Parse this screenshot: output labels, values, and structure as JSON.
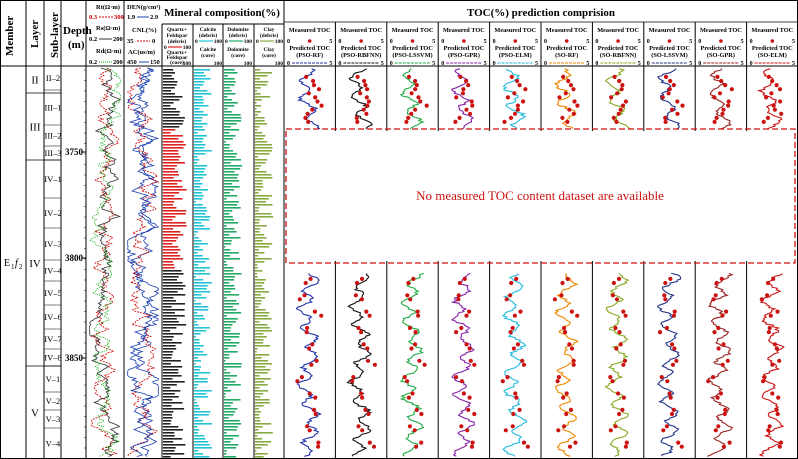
{
  "header": {
    "member": "Member",
    "layer": "Layer",
    "sublayer": "Sub-layer",
    "depth": "Depth",
    "depth_unit": "(m)",
    "mineral_title": "Mineral composition(%)",
    "toc_title": "TOC(%) prediction comprision"
  },
  "member_label": "E",
  "member_sub1": "1",
  "member_f": "f",
  "member_sub2": "2",
  "layers": [
    "II",
    "III",
    "IV",
    "V"
  ],
  "sublayers": [
    "II–2",
    "III–1",
    "III–2",
    "III–3",
    "IV–1",
    "IV–2",
    "IV–3",
    "IV–4",
    "IV–5",
    "IV–6",
    "IV–7",
    "IV–8",
    "V–1",
    "V–2",
    "V–3",
    "V–4"
  ],
  "depth_ticks": [
    "3750",
    "3800",
    "3850"
  ],
  "log_tracks": {
    "rt": {
      "label": "Rt(Ω·m)",
      "min": "0.3",
      "max": "300",
      "color": "#cc0000"
    },
    "rs": {
      "label": "Rs(Ω·m)",
      "min": "0.2",
      "max": "200",
      "color": "#333333"
    },
    "rd": {
      "label": "Rd(Ω·m)",
      "min": "0.2",
      "max": "200",
      "color": "#00aa00"
    },
    "den": {
      "label": "DEN(g/cm³)",
      "min": "1.9",
      "max": "2.9",
      "color": "#1a3fb0"
    },
    "cnl": {
      "label": "CNL(%)",
      "min": "35",
      "max": "0",
      "color": "#cc0000"
    },
    "ac": {
      "label": "AC(us/m)",
      "min": "450",
      "max": "150",
      "color": "#1a3fb0"
    }
  },
  "minerals": [
    {
      "label1": "Quartz+",
      "label2": "Feldspar",
      "label3": "(debris)",
      "core1": "Quartz+",
      "core2": "Feldspar",
      "core3": "(core)",
      "min": "0",
      "max": "100",
      "color": "#dd2222"
    },
    {
      "label1": "Calcite",
      "label2": "(debris)",
      "label3": "",
      "core1": "Calcite",
      "core2": "(core)",
      "core3": "",
      "min": "0",
      "max": "100",
      "color": "#22c4d4"
    },
    {
      "label1": "Dolomite",
      "label2": "(debris)",
      "label3": "",
      "core1": "Dolomite",
      "core2": "(core)",
      "core3": "",
      "min": "0",
      "max": "100",
      "color": "#22aa66"
    },
    {
      "label1": "Clay",
      "label2": "(debris)",
      "label3": "",
      "core1": "Clay",
      "core2": "(core)",
      "core3": "",
      "min": "0",
      "max": "100",
      "color": "#88aa44"
    }
  ],
  "toc_panels": [
    {
      "measured": "Measured TOC",
      "predicted": "Predicted TOC",
      "model": "(PSO-RF)",
      "color": "#2233aa"
    },
    {
      "measured": "Measured TOC",
      "predicted": "Predicted TOC",
      "model": "(PSO-RBFNN)",
      "color": "#111111"
    },
    {
      "measured": "Measured TOC",
      "predicted": "Predicted TOC",
      "model": "(PSO-LSSVM)",
      "color": "#22aa44"
    },
    {
      "measured": "Measured TOC",
      "predicted": "Predicted TOC",
      "model": "(PSO-GPR)",
      "color": "#8822aa"
    },
    {
      "measured": "Measured TOC",
      "predicted": "Predicted TOC",
      "model": "(PSO-ELM)",
      "color": "#22bbdd"
    },
    {
      "measured": "Measured TOC",
      "predicted": "Predicted TOC",
      "model": "(SO-RF)",
      "color": "#ee8800"
    },
    {
      "measured": "Measured TOC",
      "predicted": "Predicted TOC",
      "model": "(SO-RBFNN)",
      "color": "#88aa22"
    },
    {
      "measured": "Measured TOC",
      "predicted": "Predicted TOC",
      "model": "(SO-LSSVM)",
      "color": "#223388"
    },
    {
      "measured": "Measured TOC",
      "predicted": "Predicted TOC",
      "model": "(SO-GPR)",
      "color": "#992222"
    },
    {
      "measured": "Measured TOC",
      "predicted": "Predicted TOC",
      "model": "(SO-ELM)",
      "color": "#cc1111"
    }
  ],
  "toc_axis": {
    "min": "0",
    "max": "5"
  },
  "no_data_text": "No measured TOC content dataset are available",
  "chart_data": {
    "type": "line",
    "title": "TOC(%) prediction comprision",
    "ylabel": "Depth (m)",
    "ylim": [
      3728,
      3872
    ],
    "xlim": [
      0,
      5
    ],
    "gap_depths": [
      3752,
      3803
    ],
    "series": [
      {
        "name": "Measured TOC",
        "depth": [
          3732,
          3735,
          3738,
          3741,
          3744,
          3747,
          3806,
          3812,
          3818,
          3824,
          3830,
          3836,
          3842,
          3848,
          3854,
          3860,
          3866
        ],
        "values": [
          2.1,
          3.0,
          2.4,
          3.4,
          2.8,
          2.0,
          2.6,
          1.9,
          3.1,
          2.2,
          2.8,
          3.3,
          1.6,
          2.5,
          3.0,
          2.2,
          3.5
        ]
      },
      {
        "name": "Predicted TOC (PSO-RF)",
        "depth": [
          3732,
          3735,
          3738,
          3741,
          3744,
          3747,
          3806,
          3812,
          3818,
          3824,
          3830,
          3836,
          3842,
          3848,
          3854,
          3860,
          3866
        ],
        "values": [
          2.0,
          2.8,
          2.5,
          3.2,
          2.6,
          2.1,
          2.4,
          2.0,
          3.0,
          2.3,
          2.6,
          3.1,
          1.8,
          2.4,
          2.8,
          2.3,
          3.2
        ]
      }
    ]
  }
}
